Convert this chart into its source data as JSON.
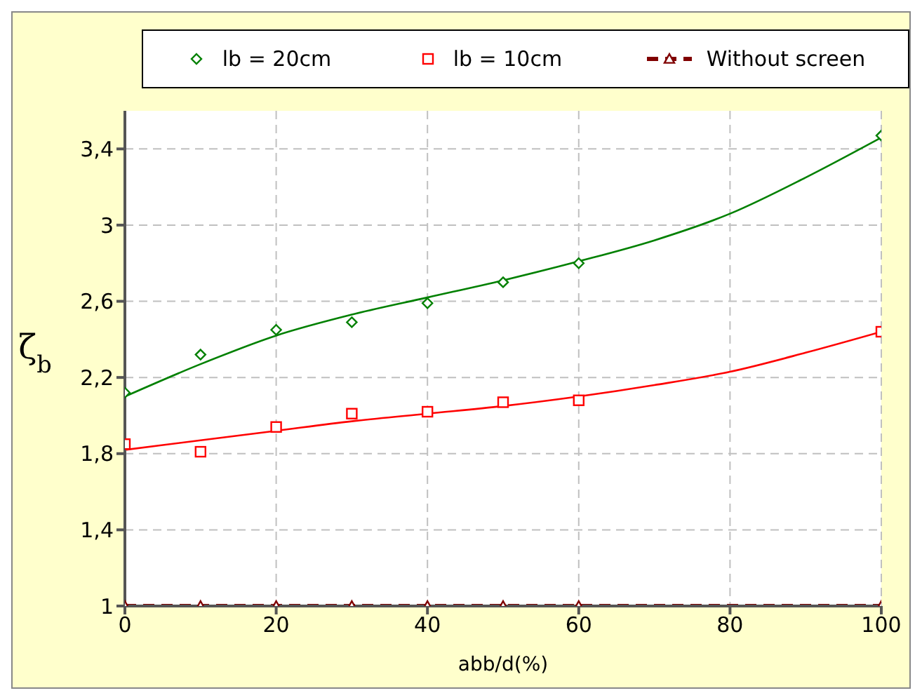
{
  "chart_data": {
    "type": "scatter",
    "xlabel": "abb/d(%)",
    "ylabel": "ζ$_{b}$",
    "xlim": [
      0,
      100
    ],
    "xticks": [
      0,
      20,
      40,
      60,
      80,
      100
    ],
    "ylim": [
      1,
      3.6
    ],
    "yticks": [
      {
        "value": 1,
        "label": "1"
      },
      {
        "value": 1.4,
        "label": "1,4"
      },
      {
        "value": 1.8,
        "label": "1,8"
      },
      {
        "value": 2.2,
        "label": "2,2"
      },
      {
        "value": 2.6,
        "label": "2,6"
      },
      {
        "value": 3,
        "label": "3"
      },
      {
        "value": 3.4,
        "label": "3,4"
      }
    ],
    "grid": true,
    "legend": "top",
    "series": [
      {
        "name": "lb = 20cm",
        "color": "#008000",
        "marker": "diamond",
        "x": [
          0,
          10,
          20,
          30,
          40,
          50,
          60,
          100
        ],
        "values": [
          2.12,
          2.32,
          2.45,
          2.49,
          2.59,
          2.7,
          2.8,
          3.47
        ]
      },
      {
        "name": "lb = 10cm",
        "color": "#ff0000",
        "marker": "square",
        "x": [
          0,
          10,
          20,
          30,
          40,
          50,
          60,
          100
        ],
        "values": [
          1.85,
          1.81,
          1.94,
          2.01,
          2.02,
          2.07,
          2.08,
          2.44
        ]
      },
      {
        "name": "Without screen",
        "type": "line",
        "color": "#800000",
        "marker": "triangle",
        "line_style": "dashed",
        "x": [
          0,
          10,
          20,
          30,
          40,
          50,
          60,
          100
        ],
        "values": [
          1,
          1,
          1,
          1,
          1,
          1,
          1,
          1
        ]
      },
      {
        "type": "line",
        "color": "#008000",
        "marker": "none",
        "x": [
          0,
          10,
          20,
          30,
          40,
          50,
          60,
          70,
          80,
          90,
          100
        ],
        "values": [
          2.1,
          2.27,
          2.42,
          2.53,
          2.62,
          2.71,
          2.81,
          2.92,
          3.06,
          3.25,
          3.46
        ]
      },
      {
        "type": "line",
        "color": "#ff0000",
        "marker": "none",
        "x": [
          0,
          10,
          20,
          30,
          40,
          50,
          60,
          70,
          80,
          90,
          100
        ],
        "values": [
          1.82,
          1.87,
          1.92,
          1.97,
          2.01,
          2.05,
          2.1,
          2.16,
          2.23,
          2.33,
          2.44
        ]
      }
    ]
  }
}
